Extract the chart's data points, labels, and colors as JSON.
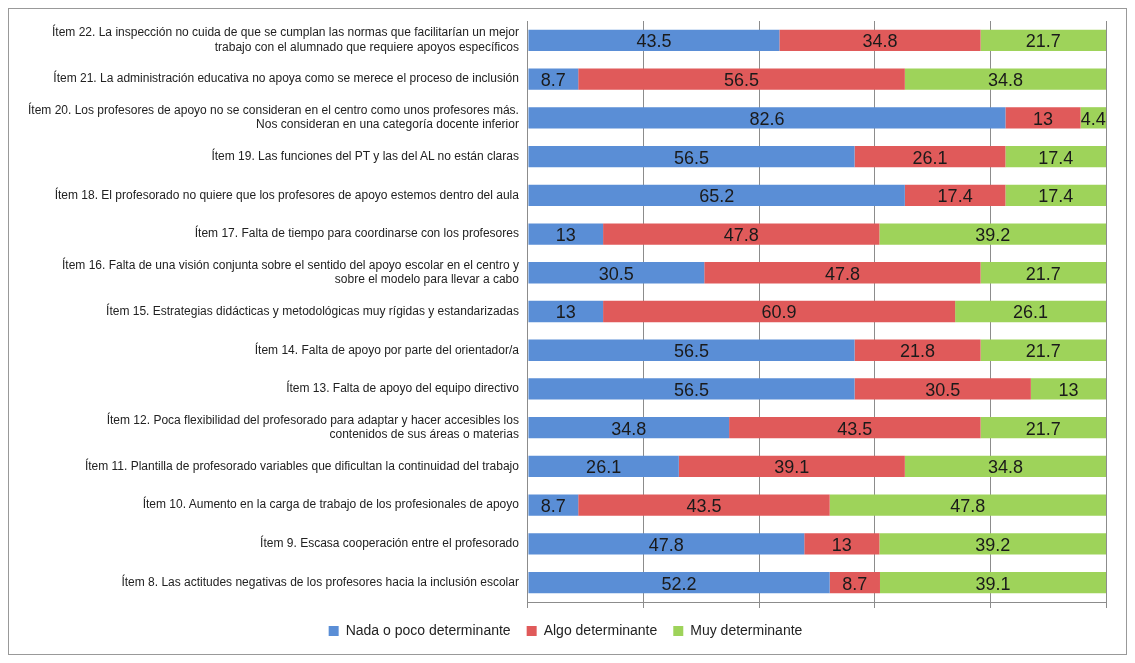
{
  "chart_data": {
    "type": "bar",
    "orientation": "horizontal",
    "stacked": true,
    "categories": [
      "Ítem 22. La inspección no cuida de que se cumplan las normas que facilitarían un mejor trabajo con el alumnado que requiere apoyos específicos",
      "Ítem 21. La administración educativa no apoya como se merece el proceso de inclusión",
      "Ítem 20. Los profesores de apoyo no se consideran en el centro como unos profesores más. Nos consideran en una categoría docente inferior",
      "Ítem 19. Las funciones del PT y las del AL no están claras",
      "Ítem 18. El profesorado no quiere que los profesores de apoyo estemos dentro del aula",
      "Ítem 17. Falta de tiempo para coordinarse con los profesores",
      "Ítem 16. Falta de una visión conjunta sobre el sentido del apoyo escolar en el centro y sobre el modelo para llevar a cabo",
      "Ítem 15. Estrategias didácticas y metodológicas muy rígidas y estandarizadas",
      "Ítem 14. Falta de apoyo por parte del orientador/a",
      "Ítem 13. Falta de apoyo del equipo directivo",
      "Ítem 12. Poca flexibilidad del profesorado para adaptar y hacer accesibles los contenidos de sus áreas o materias",
      "Ítem 11. Plantilla de profesorado variables que dificultan la continuidad del trabajo",
      "Ítem 10. Aumento en la carga de trabajo de los profesionales de apoyo",
      "Ítem 9. Escasa cooperación entre el profesorado",
      "Ítem 8. Las actitudes negativas de los profesores hacia la inclusión escolar"
    ],
    "series": [
      {
        "name": "Nada o poco determinante",
        "color": "#5a8ed6",
        "values": [
          43.5,
          8.7,
          82.6,
          56.5,
          65.2,
          13,
          30.5,
          13,
          56.5,
          56.5,
          34.8,
          26.1,
          8.7,
          47.8,
          52.2
        ]
      },
      {
        "name": "Algo determinante",
        "color": "#e05a5a",
        "values": [
          34.8,
          56.5,
          13,
          26.1,
          17.4,
          47.8,
          47.8,
          60.9,
          21.8,
          30.5,
          43.5,
          39.1,
          43.5,
          13,
          8.7
        ]
      },
      {
        "name": "Muy determinante",
        "color": "#9ed35a",
        "values": [
          21.7,
          34.8,
          4.4,
          17.4,
          17.4,
          39.2,
          21.7,
          26.1,
          21.7,
          13,
          21.7,
          34.8,
          47.8,
          39.2,
          39.1
        ]
      }
    ],
    "xlim": [
      0,
      100
    ],
    "xticks": [
      {
        "value": 0,
        "label": null
      },
      {
        "value": 20,
        "label": null
      },
      {
        "value": 40,
        "label": null
      },
      {
        "value": 60,
        "label": null
      },
      {
        "value": 80,
        "label": null
      },
      {
        "value": 100,
        "label": null
      }
    ],
    "tick_labels": "y",
    "grid": "x",
    "legend": "bottom",
    "data_labels": true
  }
}
